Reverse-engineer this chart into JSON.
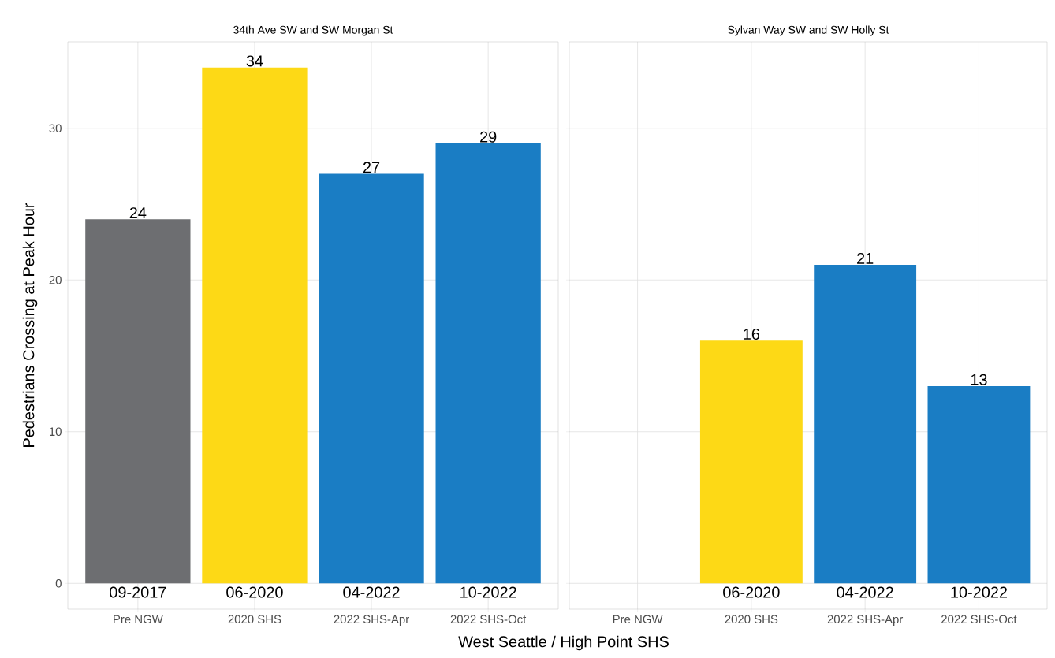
{
  "chart_data": [
    {
      "type": "bar",
      "title": "34th Ave SW and SW Morgan St",
      "xlabel": "West Seattle / High Point SHS",
      "ylabel": "Pedestrians Crossing at Peak Hour",
      "categories": [
        "Pre NGW",
        "2020 SHS",
        "2022 SHS-Apr",
        "2022 SHS-Oct"
      ],
      "values": [
        24,
        34,
        27,
        29
      ],
      "colors": [
        "#6d6e71",
        "#fdd916",
        "#1a7dc4",
        "#1a7dc4"
      ],
      "data_labels": true,
      "ylim": [
        -1.7,
        35.7
      ],
      "yticks": [
        0,
        10,
        20,
        30
      ],
      "grid": true,
      "annotations": [
        "09-2017",
        "06-2020",
        "04-2022",
        "10-2022"
      ]
    },
    {
      "type": "bar",
      "title": "Sylvan Way SW and SW Holly St",
      "categories": [
        "Pre NGW",
        "2020 SHS",
        "2022 SHS-Apr",
        "2022 SHS-Oct"
      ],
      "values": [
        null,
        16,
        21,
        13
      ],
      "colors": [
        null,
        "#fdd916",
        "#1a7dc4",
        "#1a7dc4"
      ],
      "data_labels": true,
      "ylim": [
        -1.7,
        35.7
      ],
      "yticks": [
        0,
        10,
        20,
        30
      ],
      "grid": true,
      "tick_labels": "x",
      "annotations": [
        "06-2020",
        "04-2022",
        "10-2022"
      ]
    }
  ]
}
